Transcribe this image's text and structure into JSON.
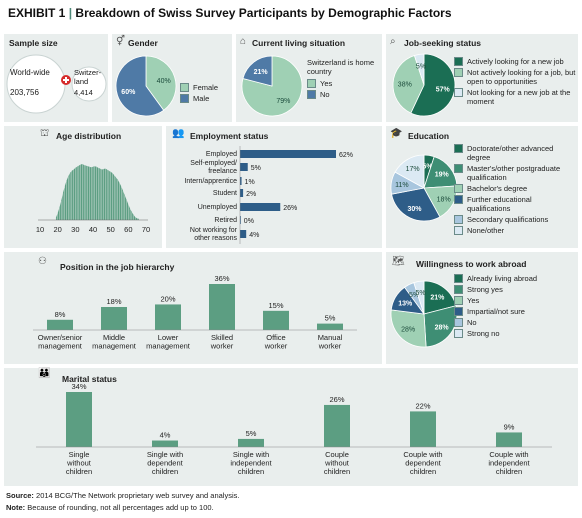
{
  "header": {
    "exhibit": "EXHIBIT 1",
    "separator": "|",
    "title": "Breakdown of Swiss Survey Participants by Demographic Factors"
  },
  "colors": {
    "panel": "#e9eeed",
    "dark_green": "#1b6e54",
    "mid_green": "#3e8e74",
    "light_green": "#9fd0b4",
    "steel_blue": "#4f7aa6",
    "light_blue": "#a8c6de",
    "pale_blue": "#dbe9f3",
    "bar_green": "#5c9e82",
    "dark_blue": "#2e5d88"
  },
  "sample": {
    "title": "Sample size",
    "world_label": "World-wide",
    "world_value": "203,756",
    "swiss_label": "Switzer-land",
    "swiss_value": "4,414"
  },
  "footer": {
    "source_label": "Source:",
    "source": "2014 BCG/The Network proprietary web survey and analysis.",
    "note_label": "Note:",
    "note": "Because of rounding, not all percentages add up to 100."
  },
  "chart_data": [
    {
      "id": "gender",
      "type": "pie",
      "title": "Gender",
      "labels": [
        "Female",
        "Male"
      ],
      "values": [
        40,
        60
      ],
      "value_labels": [
        "40%",
        "60%"
      ],
      "colors": [
        "#9fd0b4",
        "#4f7aa6"
      ]
    },
    {
      "id": "living",
      "type": "pie",
      "title": "Current living situation",
      "legend_title": "Switzerland is home country",
      "labels": [
        "Yes",
        "No"
      ],
      "values": [
        79,
        21
      ],
      "value_labels": [
        "79%",
        "21%"
      ],
      "colors": [
        "#9fd0b4",
        "#4f7aa6"
      ]
    },
    {
      "id": "job",
      "type": "pie",
      "title": "Job-seeking status",
      "labels": [
        "Actively looking for a new job",
        "Not actively looking for a job, but open to opportunities",
        "Not looking for a new job at the moment"
      ],
      "values": [
        57,
        38,
        5
      ],
      "value_labels": [
        "57%",
        "38%",
        "5%"
      ],
      "colors": [
        "#1b6e54",
        "#9fd0b4",
        "#dbe9f3"
      ]
    },
    {
      "id": "age",
      "type": "area",
      "title": "Age distribution",
      "x_ticks": [
        "10",
        "20",
        "30",
        "40",
        "50",
        "60",
        "70"
      ],
      "xlim": [
        10,
        70
      ],
      "x": [
        19,
        20,
        21,
        22,
        23,
        24,
        25,
        26,
        27,
        28,
        29,
        30,
        31,
        32,
        33,
        34,
        35,
        36,
        37,
        38,
        39,
        40,
        41,
        42,
        43,
        44,
        45,
        46,
        47,
        48,
        49,
        50,
        51,
        52,
        53,
        54,
        55,
        56,
        57,
        58,
        59,
        60,
        61,
        62,
        63,
        64,
        65,
        66
      ],
      "values": [
        0.04,
        0.12,
        0.22,
        0.34,
        0.48,
        0.6,
        0.7,
        0.78,
        0.84,
        0.88,
        0.9,
        0.93,
        0.95,
        0.97,
        0.99,
        1.0,
        0.98,
        0.97,
        0.96,
        0.95,
        0.94,
        0.95,
        0.96,
        0.95,
        0.93,
        0.92,
        0.9,
        0.91,
        0.92,
        0.9,
        0.88,
        0.86,
        0.84,
        0.8,
        0.76,
        0.72,
        0.66,
        0.6,
        0.52,
        0.44,
        0.36,
        0.28,
        0.2,
        0.14,
        0.09,
        0.05,
        0.03,
        0.02
      ]
    },
    {
      "id": "employment",
      "type": "bar",
      "title": "Employment status",
      "categories": [
        "Employed",
        "Self-employed/ freelance",
        "Intern/apprentice",
        "Student",
        "Unemployed",
        "Retired",
        "Not working for other reasons"
      ],
      "values": [
        62,
        5,
        1,
        2,
        26,
        0,
        4
      ],
      "value_labels": [
        "62%",
        "5%",
        "1%",
        "2%",
        "26%",
        "0%",
        "4%"
      ]
    },
    {
      "id": "education",
      "type": "pie",
      "title": "Education",
      "labels": [
        "Doctorate/other advanced degree",
        "Master's/other postgraduate qualification",
        "Bachelor's degree",
        "Further educational qualifications",
        "Secondary qualifications",
        "None/other"
      ],
      "values": [
        5,
        19,
        18,
        30,
        11,
        17
      ],
      "value_labels": [
        "5%",
        "19%",
        "18%",
        "30%",
        "11%",
        "17%"
      ],
      "colors": [
        "#1b6e54",
        "#3e8e74",
        "#9fd0b4",
        "#2e5d88",
        "#a8c6de",
        "#dbe9f3"
      ]
    },
    {
      "id": "hierarchy",
      "type": "bar",
      "title": "Position in the job hierarchy",
      "categories": [
        "Owner/senior management",
        "Middle management",
        "Lower management",
        "Skilled worker",
        "Office worker",
        "Manual worker"
      ],
      "values": [
        8,
        18,
        20,
        36,
        15,
        5
      ],
      "value_labels": [
        "8%",
        "18%",
        "20%",
        "36%",
        "15%",
        "5%"
      ]
    },
    {
      "id": "abroad",
      "type": "pie",
      "title": "Willingness to work abroad",
      "labels": [
        "Already living abroad",
        "Strong yes",
        "Yes",
        "Impartial/not sure",
        "No",
        "Strong no"
      ],
      "values": [
        21,
        28,
        28,
        13,
        5,
        5
      ],
      "value_labels": [
        "21%",
        "28%",
        "28%",
        "13%",
        "5%",
        "5%"
      ],
      "colors": [
        "#1b6e54",
        "#3e8e74",
        "#9fd0b4",
        "#2e5d88",
        "#a8c6de",
        "#dbe9f3"
      ]
    },
    {
      "id": "marital",
      "type": "bar",
      "title": "Marital status",
      "categories": [
        "Single without children",
        "Single with dependent children",
        "Single with independent children",
        "Couple without children",
        "Couple with dependent children",
        "Couple with independent children"
      ],
      "values": [
        34,
        4,
        5,
        26,
        22,
        9
      ],
      "value_labels": [
        "34%",
        "4%",
        "5%",
        "26%",
        "22%",
        "9%"
      ]
    }
  ]
}
